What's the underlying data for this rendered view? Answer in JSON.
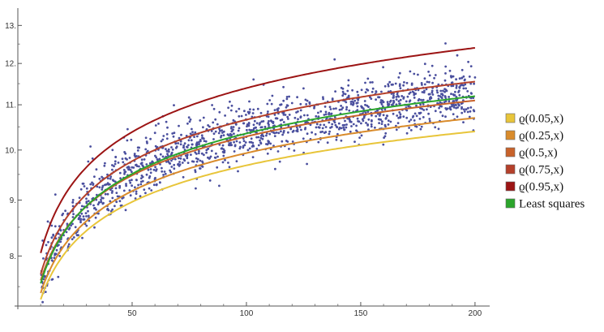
{
  "chart_data": {
    "type": "scatter",
    "xlim": [
      0,
      205
    ],
    "ylim": [
      7.2,
      13.3
    ],
    "y_scale": "log",
    "x_ticks": [
      50,
      100,
      150,
      200
    ],
    "x_tick_labels": [
      "50",
      "100",
      "150",
      "200"
    ],
    "y_ticks": [
      8,
      9,
      10,
      11,
      12,
      13
    ],
    "y_tick_labels": [
      "8.",
      "9.",
      "10.",
      "11.",
      "12.",
      "13."
    ],
    "grid": false,
    "legend_position": "right",
    "scatter": {
      "name": "",
      "color": "#4a4f9e",
      "x_range": [
        10,
        200
      ],
      "point_count": 1500
    },
    "series": [
      {
        "name": "ϱ(0.05,x)",
        "color": "#e8c53a",
        "values_at": {
          "x": [
            10,
            50,
            100,
            150,
            200
          ],
          "y": [
            7.3,
            8.95,
            9.6,
            10.1,
            10.4
          ]
        }
      },
      {
        "name": "ϱ(0.25,x)",
        "color": "#d98b2b",
        "values_at": {
          "x": [
            10,
            50,
            100,
            150,
            200
          ],
          "y": [
            7.4,
            9.25,
            9.95,
            10.4,
            10.7
          ]
        }
      },
      {
        "name": "ϱ(0.5,x)",
        "color": "#c8622a",
        "values_at": {
          "x": [
            10,
            50,
            100,
            150,
            200
          ],
          "y": [
            7.6,
            9.55,
            10.3,
            10.75,
            11.1
          ]
        }
      },
      {
        "name": "ϱ(0.75,x)",
        "color": "#b5402a",
        "values_at": {
          "x": [
            10,
            50,
            100,
            150,
            200
          ],
          "y": [
            7.7,
            9.8,
            10.7,
            11.2,
            11.55
          ]
        }
      },
      {
        "name": "ϱ(0.95,x)",
        "color": "#9c1414",
        "values_at": {
          "x": [
            10,
            50,
            100,
            150,
            200
          ],
          "y": [
            8.05,
            10.55,
            11.45,
            12.0,
            12.4
          ]
        }
      },
      {
        "name": "Least squares",
        "color": "#2ba52b",
        "values_at": {
          "x": [
            10,
            50,
            100,
            150,
            200
          ],
          "y": [
            7.55,
            9.75,
            10.5,
            10.95,
            11.2
          ]
        }
      }
    ]
  }
}
